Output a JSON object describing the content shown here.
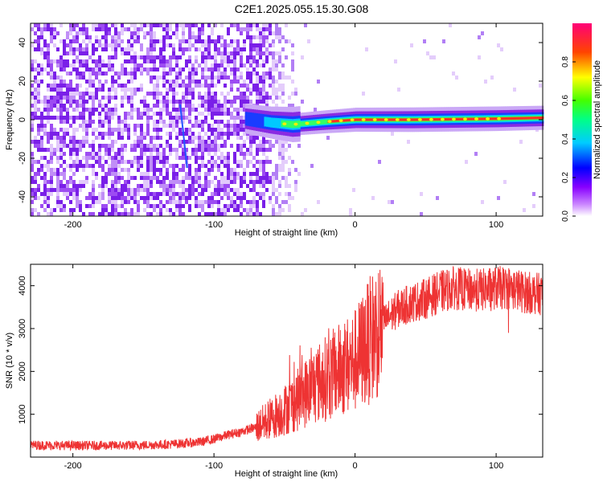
{
  "title": "C2E1.2025.055.15.30.G08",
  "chart_data": [
    {
      "type": "heatmap",
      "xlabel": "Height of straight line (km)",
      "ylabel": "Frequency (Hz)",
      "xlim": [
        -230,
        133
      ],
      "ylim": [
        -50,
        50
      ],
      "xticks": [
        -200,
        -100,
        0,
        100
      ],
      "yticks": [
        -40,
        -20,
        0,
        20,
        40
      ],
      "colorbar": {
        "label": "Normalized spectral amplitude",
        "range": [
          0.0,
          1.0
        ],
        "ticks": [
          0.0,
          0.2,
          0.4,
          0.6,
          0.8
        ]
      },
      "features": {
        "noise_region_x": [
          -230,
          -60
        ],
        "signal_ridge": [
          {
            "x": -78,
            "freq": 0.5,
            "amplitude": 0.35
          },
          {
            "x": -60,
            "freq": -1.5,
            "amplitude": 0.5
          },
          {
            "x": -45,
            "freq": -2.5,
            "amplitude": 0.7
          },
          {
            "x": -20,
            "freq": -1.0,
            "amplitude": 0.8
          },
          {
            "x": 0,
            "freq": 0.0,
            "amplitude": 0.9
          },
          {
            "x": 40,
            "freq": 0.0,
            "amplitude": 0.95
          },
          {
            "x": 100,
            "freq": 0.5,
            "amplitude": 0.95
          },
          {
            "x": 133,
            "freq": 1.0,
            "amplitude": 0.9
          }
        ],
        "streak": {
          "x0": -124,
          "f0": 8,
          "x1": -119,
          "f1": -25
        }
      }
    },
    {
      "type": "line",
      "xlabel": "Height of straight line (km)",
      "ylabel": "SNR (10 * v/v)",
      "xlim": [
        -230,
        133
      ],
      "ylim": [
        0,
        4500
      ],
      "xticks": [
        -200,
        -100,
        0,
        100
      ],
      "yticks": [
        1000,
        2000,
        3000,
        4000
      ],
      "color": "#ee3333",
      "series": [
        {
          "x": [
            -230,
            -200,
            -170,
            -150,
            -130,
            -110,
            -100,
            -90,
            -80,
            -70,
            -60,
            -50,
            -40,
            -30,
            -20,
            -10,
            0,
            10,
            20,
            30,
            40,
            50,
            60,
            70,
            80,
            90,
            100,
            110,
            120,
            133
          ],
          "y": [
            280,
            270,
            270,
            280,
            300,
            350,
            420,
            520,
            600,
            700,
            900,
            1100,
            1350,
            1650,
            1850,
            2050,
            2250,
            2700,
            3150,
            3450,
            3600,
            3700,
            3850,
            3950,
            3900,
            3900,
            3950,
            3950,
            3850,
            3800
          ]
        }
      ]
    }
  ]
}
